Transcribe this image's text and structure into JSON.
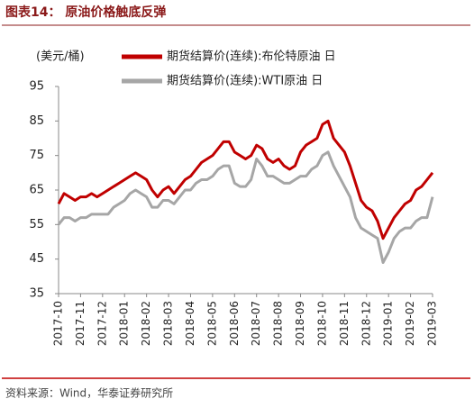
{
  "chart_data": {
    "type": "line",
    "title": "图表14：  原油价格触底反弹",
    "y_label": "(美元/桶)",
    "source": "资料来源：Wind，华泰证券研究所",
    "categories": [
      "2017-10",
      null,
      null,
      null,
      "2017-11",
      null,
      null,
      null,
      "2017-12",
      null,
      null,
      null,
      "2018-01",
      null,
      null,
      null,
      "2018-02",
      null,
      null,
      null,
      "2018-03",
      null,
      null,
      null,
      "2018-04",
      null,
      null,
      null,
      "2018-05",
      null,
      null,
      null,
      "2018-06",
      null,
      null,
      null,
      "2018-07",
      null,
      null,
      null,
      "2018-08",
      null,
      null,
      null,
      "2018-09",
      null,
      null,
      null,
      "2018-10",
      null,
      null,
      null,
      "2018-11",
      null,
      null,
      null,
      "2018-12",
      null,
      null,
      null,
      "2019-01",
      null,
      null,
      null,
      "2019-02",
      null,
      null,
      null,
      "2019-03"
    ],
    "series": [
      {
        "name": "期货结算价(连续):布伦特原油 日",
        "color": "#c00000",
        "values": [
          61,
          64,
          63,
          62,
          63,
          63,
          64,
          63,
          64,
          65,
          66,
          67,
          68,
          69,
          70,
          69,
          68,
          65,
          63,
          65,
          66,
          64,
          66,
          68,
          69,
          71,
          73,
          74,
          75,
          77,
          79,
          79,
          76,
          75,
          74,
          75,
          78,
          77,
          74,
          73,
          74,
          72,
          71,
          72,
          76,
          78,
          79,
          80,
          84,
          85,
          80,
          78,
          76,
          72,
          67,
          62,
          60,
          59,
          56,
          51,
          54,
          57,
          59,
          61,
          62,
          65,
          66,
          68,
          70
        ]
      },
      {
        "name": "期货结算价(连续):WTI原油 日",
        "color": "#a6a6a6",
        "values": [
          55,
          57,
          57,
          56,
          57,
          57,
          58,
          58,
          58,
          58,
          60,
          61,
          62,
          64,
          65,
          64,
          63,
          60,
          60,
          62,
          62,
          61,
          63,
          65,
          65,
          67,
          68,
          68,
          69,
          71,
          72,
          72,
          67,
          66,
          66,
          68,
          74,
          72,
          69,
          69,
          68,
          67,
          67,
          68,
          69,
          69,
          71,
          72,
          75,
          76,
          72,
          69,
          66,
          63,
          57,
          54,
          53,
          52,
          51,
          44,
          47,
          51,
          53,
          54,
          54,
          56,
          57,
          57,
          63
        ]
      }
    ],
    "ylim": [
      35,
      95
    ],
    "yticks": [
      35,
      45,
      55,
      65,
      75,
      85,
      95
    ],
    "grid": false,
    "legend": "top"
  }
}
